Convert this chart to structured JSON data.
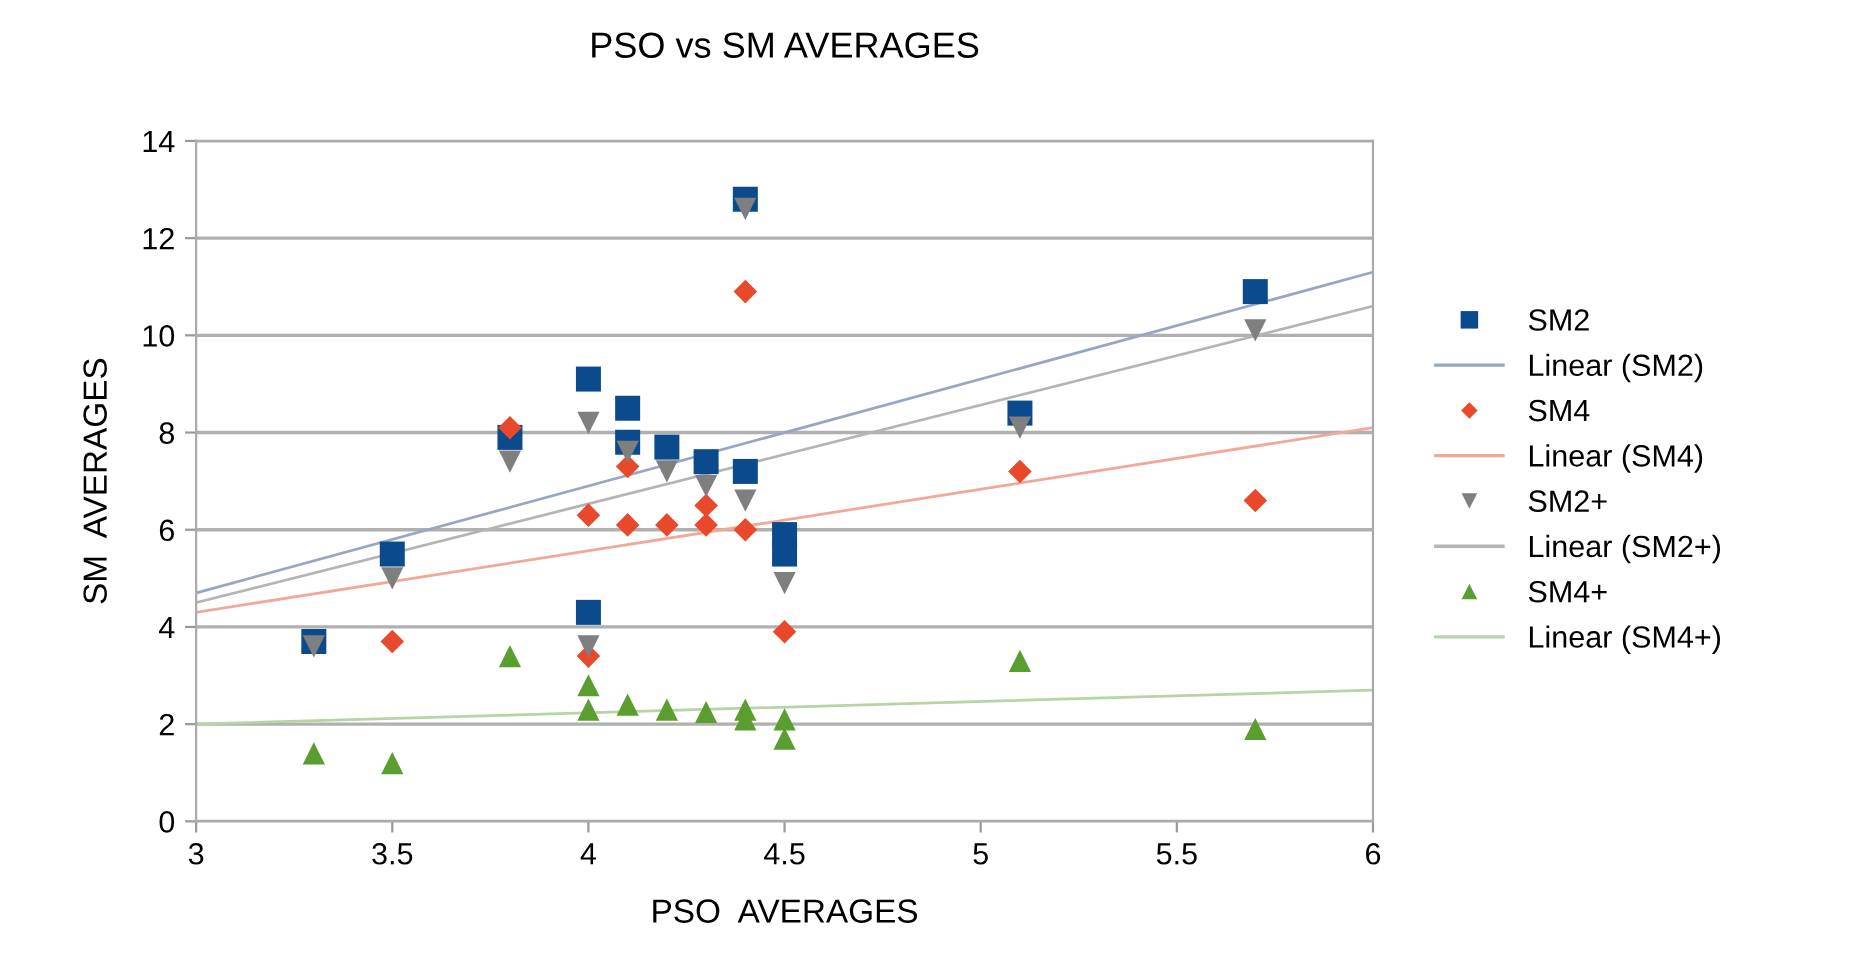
{
  "chart_data": {
    "type": "scatter",
    "title": "PSO vs SM AVERAGES",
    "xlabel": "PSO  AVERAGES",
    "ylabel": "SM  AVERAGES",
    "xlim": [
      3,
      6
    ],
    "xticks": [
      3,
      3.5,
      4,
      4.5,
      5,
      5.5,
      6
    ],
    "ylim": [
      0,
      14
    ],
    "yticks": [
      0,
      2,
      4,
      6,
      8,
      10,
      12,
      14
    ],
    "grid": "y",
    "legend": "right",
    "series": [
      {
        "name": "SM2",
        "marker": "square",
        "color": "#0b4a8c",
        "x": [
          3.3,
          3.5,
          3.8,
          4.0,
          4.0,
          4.1,
          4.1,
          4.2,
          4.3,
          4.4,
          4.4,
          4.5,
          4.5,
          5.1,
          5.7
        ],
        "values": [
          3.7,
          5.5,
          7.9,
          9.1,
          4.3,
          8.5,
          7.8,
          7.7,
          7.4,
          7.2,
          12.8,
          5.9,
          5.5,
          8.4,
          10.9
        ]
      },
      {
        "name": "Linear (SM2)",
        "type": "line",
        "line_style": "solid",
        "color": "#97a6c4",
        "x": [
          3,
          6
        ],
        "values": [
          4.7,
          11.3
        ]
      },
      {
        "name": "SM4",
        "marker": "diamond",
        "color": "#e8492a",
        "x": [
          3.5,
          3.8,
          4.0,
          4.0,
          4.1,
          4.1,
          4.2,
          4.3,
          4.3,
          4.4,
          4.4,
          4.5,
          5.1,
          5.7
        ],
        "values": [
          3.7,
          8.1,
          6.3,
          3.4,
          7.3,
          6.1,
          6.1,
          6.5,
          6.1,
          6.0,
          10.9,
          3.9,
          7.2,
          6.6
        ]
      },
      {
        "name": "Linear (SM4)",
        "type": "line",
        "line_style": "solid",
        "color": "#f2a898",
        "x": [
          3,
          6
        ],
        "values": [
          4.3,
          8.1
        ]
      },
      {
        "name": "SM2+",
        "marker": "triangle_down",
        "color": "#7f7f7f",
        "x": [
          3.3,
          3.5,
          3.8,
          4.0,
          4.0,
          4.1,
          4.2,
          4.3,
          4.4,
          4.4,
          4.5,
          5.1,
          5.7
        ],
        "values": [
          3.6,
          5.0,
          7.4,
          8.2,
          3.6,
          7.6,
          7.2,
          6.9,
          6.6,
          12.6,
          4.9,
          8.1,
          10.1
        ]
      },
      {
        "name": "Linear (SM2+)",
        "type": "line",
        "line_style": "solid",
        "color": "#b4b4b4",
        "x": [
          3,
          6
        ],
        "values": [
          4.5,
          10.6
        ]
      },
      {
        "name": "SM4+",
        "marker": "triangle",
        "color": "#5a9e2f",
        "x": [
          3.3,
          3.5,
          3.8,
          4.0,
          4.0,
          4.1,
          4.2,
          4.3,
          4.4,
          4.4,
          4.5,
          4.5,
          5.1,
          5.7
        ],
        "values": [
          1.4,
          1.2,
          3.4,
          2.8,
          2.3,
          2.4,
          2.3,
          2.25,
          2.3,
          2.1,
          2.1,
          1.7,
          3.3,
          1.9
        ]
      },
      {
        "name": "Linear (SM4+)",
        "type": "line",
        "line_style": "solid",
        "color": "#b6d4a4",
        "x": [
          3,
          6
        ],
        "values": [
          2.0,
          2.7
        ]
      }
    ]
  }
}
